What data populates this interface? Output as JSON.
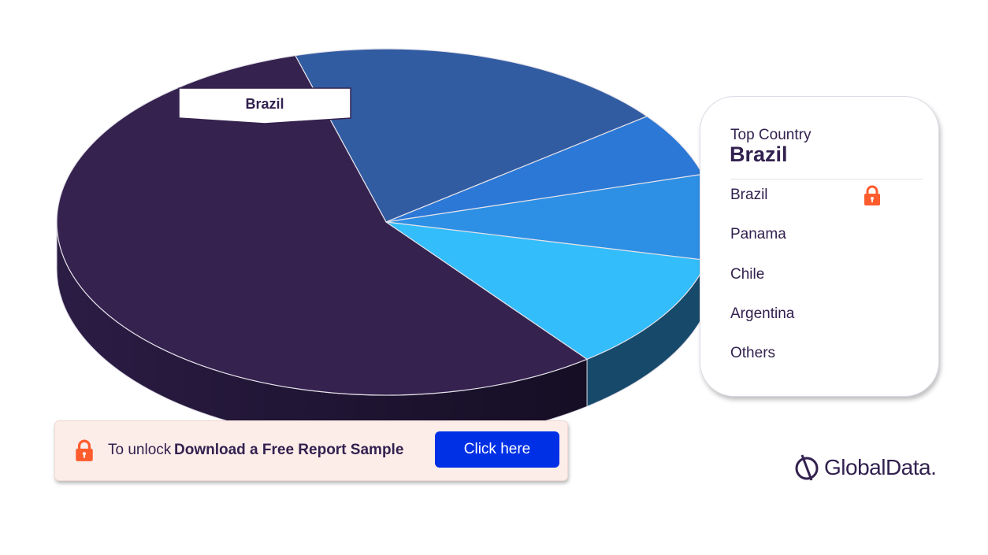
{
  "chart_data": {
    "type": "pie",
    "style": "3d",
    "categories": [
      "Brazil",
      "Panama",
      "Chile",
      "Argentina",
      "Others"
    ],
    "values": [
      56,
      11,
      8,
      6,
      19
    ],
    "callout_label": "Brazil"
  },
  "colors": {
    "Brazil": "#35224f",
    "Panama": "#33bdfa",
    "Chile": "#2d90e4",
    "Argentina": "#2b78d6",
    "Others": "#325ca2",
    "lock": "#ff5c2e",
    "cta": "#0030e6",
    "brand": "#32214f"
  },
  "legend": {
    "heading": "Top Country",
    "top_value": "Brazil",
    "items": [
      "Brazil",
      "Panama",
      "Chile",
      "Argentina",
      "Others"
    ]
  },
  "unlock": {
    "prefix": "To unlock",
    "strong": "Download a Free Report Sample",
    "button": "Click here"
  },
  "brand": {
    "name": "GlobalData."
  },
  "icons": {
    "lock": "lock-icon",
    "brand_mark": "globaldata-logo-icon"
  }
}
